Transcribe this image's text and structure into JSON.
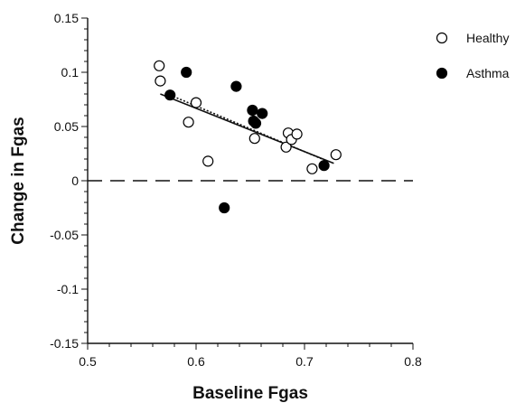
{
  "chart_data": {
    "type": "scatter",
    "xlabel": "Baseline Fgas",
    "ylabel": "Change in Fgas",
    "xlim": [
      0.5,
      0.8
    ],
    "ylim": [
      -0.15,
      0.15
    ],
    "x_ticks": [
      0.5,
      0.6,
      0.7,
      0.8
    ],
    "x_tick_labels": [
      "0.5",
      "0.6",
      "0.7",
      "0.8"
    ],
    "y_ticks": [
      -0.15,
      -0.1,
      -0.05,
      0,
      0.05,
      0.1,
      0.15
    ],
    "y_tick_labels": [
      "-0.15",
      "-0.1",
      "-0.05",
      "0",
      "0.05",
      "0.1",
      "0.15"
    ],
    "grid": false,
    "legend_position": "top-right",
    "reference_line": {
      "y": 0,
      "style": "dashed"
    },
    "series": [
      {
        "name": "Healthy",
        "marker": "open-circle",
        "color": "#000000",
        "points": [
          {
            "x": 0.566,
            "y": 0.106
          },
          {
            "x": 0.567,
            "y": 0.092
          },
          {
            "x": 0.593,
            "y": 0.054
          },
          {
            "x": 0.6,
            "y": 0.072
          },
          {
            "x": 0.611,
            "y": 0.018
          },
          {
            "x": 0.654,
            "y": 0.039
          },
          {
            "x": 0.683,
            "y": 0.031
          },
          {
            "x": 0.685,
            "y": 0.044
          },
          {
            "x": 0.688,
            "y": 0.038
          },
          {
            "x": 0.693,
            "y": 0.043
          },
          {
            "x": 0.707,
            "y": 0.011
          },
          {
            "x": 0.729,
            "y": 0.024
          }
        ],
        "trendline": {
          "style": "solid",
          "x": [
            0.567,
            0.727
          ],
          "y": [
            0.08,
            0.016
          ]
        }
      },
      {
        "name": "Asthma",
        "marker": "filled-circle",
        "color": "#000000",
        "points": [
          {
            "x": 0.576,
            "y": 0.079
          },
          {
            "x": 0.591,
            "y": 0.1
          },
          {
            "x": 0.626,
            "y": -0.025
          },
          {
            "x": 0.637,
            "y": 0.087
          },
          {
            "x": 0.652,
            "y": 0.065
          },
          {
            "x": 0.653,
            "y": 0.055
          },
          {
            "x": 0.655,
            "y": 0.053
          },
          {
            "x": 0.661,
            "y": 0.062
          },
          {
            "x": 0.718,
            "y": 0.014
          }
        ],
        "trendline": {
          "style": "dotted",
          "x": [
            0.576,
            0.721
          ],
          "y": [
            0.079,
            0.018
          ]
        }
      }
    ]
  }
}
